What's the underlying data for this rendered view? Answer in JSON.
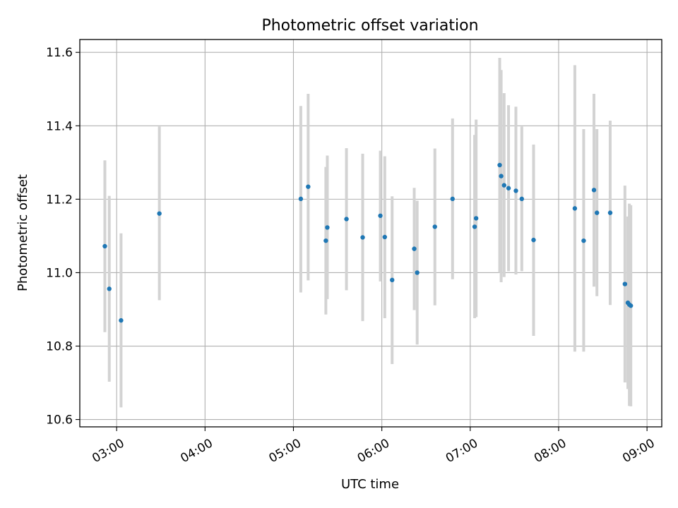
{
  "chart_data": {
    "type": "scatter",
    "title": "Photometric offset variation",
    "xlabel": "UTC time",
    "ylabel": "Photometric offset",
    "xlim": [
      "02:35",
      "09:10"
    ],
    "ylim": [
      10.58,
      11.635
    ],
    "grid": true,
    "x_ticks": [
      "03:00",
      "04:00",
      "05:00",
      "06:00",
      "07:00",
      "08:00",
      "09:00"
    ],
    "y_ticks": [
      "10.6",
      "10.8",
      "11.0",
      "11.2",
      "11.4",
      "11.6"
    ],
    "marker_color": "#1f77b4",
    "errorbar_color": "#d3d3d3",
    "points": [
      {
        "time": "02:52",
        "value": 11.072,
        "low": 10.838,
        "high": 11.306
      },
      {
        "time": "02:55",
        "value": 10.956,
        "low": 10.703,
        "high": 11.209
      },
      {
        "time": "03:03",
        "value": 10.87,
        "low": 10.633,
        "high": 11.107
      },
      {
        "time": "03:29",
        "value": 11.161,
        "low": 10.925,
        "high": 11.398
      },
      {
        "time": "05:05",
        "value": 11.201,
        "low": 10.946,
        "high": 11.454
      },
      {
        "time": "05:10",
        "value": 11.234,
        "low": 10.979,
        "high": 11.487
      },
      {
        "time": "05:22",
        "value": 11.087,
        "low": 10.886,
        "high": 11.288
      },
      {
        "time": "05:23",
        "value": 11.123,
        "low": 10.928,
        "high": 11.319
      },
      {
        "time": "05:36",
        "value": 11.146,
        "low": 10.952,
        "high": 11.339
      },
      {
        "time": "05:47",
        "value": 11.096,
        "low": 10.868,
        "high": 11.324
      },
      {
        "time": "05:59",
        "value": 11.155,
        "low": 10.976,
        "high": 11.332
      },
      {
        "time": "06:02",
        "value": 11.097,
        "low": 10.876,
        "high": 11.317
      },
      {
        "time": "06:07",
        "value": 10.98,
        "low": 10.751,
        "high": 11.208
      },
      {
        "time": "06:22",
        "value": 11.065,
        "low": 10.898,
        "high": 11.231
      },
      {
        "time": "06:24",
        "value": 11.0,
        "low": 10.804,
        "high": 11.196
      },
      {
        "time": "06:36",
        "value": 11.125,
        "low": 10.911,
        "high": 11.338
      },
      {
        "time": "06:48",
        "value": 11.201,
        "low": 10.982,
        "high": 11.42
      },
      {
        "time": "07:03",
        "value": 11.125,
        "low": 10.876,
        "high": 11.375
      },
      {
        "time": "07:04",
        "value": 11.148,
        "low": 10.879,
        "high": 11.417
      },
      {
        "time": "07:20",
        "value": 11.293,
        "low": 11.0,
        "high": 11.585
      },
      {
        "time": "07:21",
        "value": 11.263,
        "low": 10.974,
        "high": 11.552
      },
      {
        "time": "07:23",
        "value": 11.238,
        "low": 10.988,
        "high": 11.489
      },
      {
        "time": "07:26",
        "value": 11.23,
        "low": 11.004,
        "high": 11.456
      },
      {
        "time": "07:31",
        "value": 11.223,
        "low": 10.995,
        "high": 11.452
      },
      {
        "time": "07:35",
        "value": 11.201,
        "low": 11.004,
        "high": 11.398
      },
      {
        "time": "07:43",
        "value": 11.089,
        "low": 10.828,
        "high": 11.349
      },
      {
        "time": "08:11",
        "value": 11.175,
        "low": 10.785,
        "high": 11.565
      },
      {
        "time": "08:17",
        "value": 11.087,
        "low": 10.785,
        "high": 11.391
      },
      {
        "time": "08:24",
        "value": 11.225,
        "low": 10.962,
        "high": 11.487
      },
      {
        "time": "08:26",
        "value": 11.163,
        "low": 10.936,
        "high": 11.391
      },
      {
        "time": "08:35",
        "value": 11.163,
        "low": 10.912,
        "high": 11.414
      },
      {
        "time": "08:45",
        "value": 10.969,
        "low": 10.701,
        "high": 11.237
      },
      {
        "time": "08:47",
        "value": 10.918,
        "low": 10.683,
        "high": 11.153
      },
      {
        "time": "08:48",
        "value": 10.913,
        "low": 10.637,
        "high": 11.188
      },
      {
        "time": "08:49",
        "value": 10.91,
        "low": 10.636,
        "high": 11.184
      }
    ]
  }
}
